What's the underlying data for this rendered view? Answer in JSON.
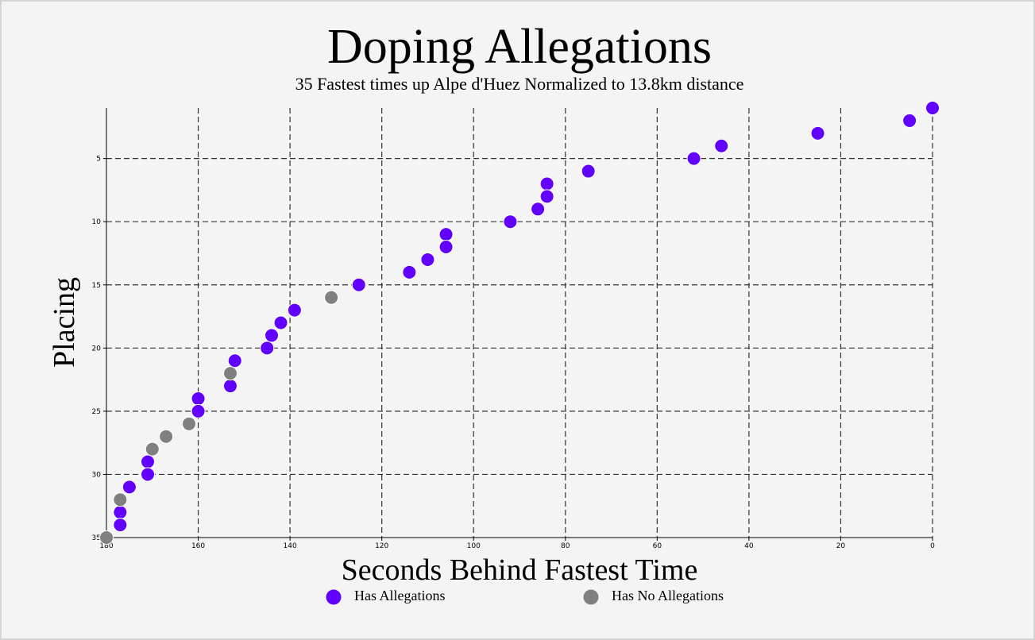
{
  "chart_data": {
    "type": "scatter",
    "title": "Doping Allegations",
    "subtitle": "35 Fastest times up Alpe d'Huez Normalized to 13.8km distance",
    "xlabel": "Seconds Behind Fastest Time",
    "ylabel": "Placing",
    "xlim": [
      180,
      0
    ],
    "ylim": [
      1,
      35
    ],
    "x_ticks": [
      180,
      160,
      140,
      120,
      100,
      80,
      60,
      40,
      20,
      0
    ],
    "x_tick_labels": [
      "180",
      "160",
      "140",
      "120",
      "100",
      "80",
      "60",
      "40",
      "20",
      "0"
    ],
    "y_ticks": [
      5,
      10,
      15,
      20,
      25,
      30,
      35
    ],
    "y_tick_labels": [
      "5",
      "10",
      "15",
      "20",
      "25",
      "30",
      "35"
    ],
    "grid": true,
    "grid_style": "dashed",
    "legend_position": "bottom",
    "series": [
      {
        "name": "Has Allegations",
        "color": "#6200ff",
        "points": [
          {
            "x": 0,
            "y": 1
          },
          {
            "x": 5,
            "y": 2
          },
          {
            "x": 25,
            "y": 3
          },
          {
            "x": 46,
            "y": 4
          },
          {
            "x": 52,
            "y": 5
          },
          {
            "x": 75,
            "y": 6
          },
          {
            "x": 84,
            "y": 7
          },
          {
            "x": 84,
            "y": 8
          },
          {
            "x": 86,
            "y": 9
          },
          {
            "x": 92,
            "y": 10
          },
          {
            "x": 106,
            "y": 11
          },
          {
            "x": 106,
            "y": 12
          },
          {
            "x": 110,
            "y": 13
          },
          {
            "x": 114,
            "y": 14
          },
          {
            "x": 125,
            "y": 15
          },
          {
            "x": 139,
            "y": 17
          },
          {
            "x": 142,
            "y": 18
          },
          {
            "x": 144,
            "y": 19
          },
          {
            "x": 145,
            "y": 20
          },
          {
            "x": 152,
            "y": 21
          },
          {
            "x": 153,
            "y": 23
          },
          {
            "x": 160,
            "y": 24
          },
          {
            "x": 160,
            "y": 25
          },
          {
            "x": 171,
            "y": 29
          },
          {
            "x": 171,
            "y": 30
          },
          {
            "x": 175,
            "y": 31
          },
          {
            "x": 177,
            "y": 33
          },
          {
            "x": 177,
            "y": 34
          }
        ]
      },
      {
        "name": "Has No Allegations",
        "color": "#808080",
        "points": [
          {
            "x": 131,
            "y": 16
          },
          {
            "x": 153,
            "y": 22
          },
          {
            "x": 162,
            "y": 26
          },
          {
            "x": 167,
            "y": 27
          },
          {
            "x": 170,
            "y": 28
          },
          {
            "x": 177,
            "y": 32
          },
          {
            "x": 180,
            "y": 35
          }
        ]
      }
    ]
  }
}
